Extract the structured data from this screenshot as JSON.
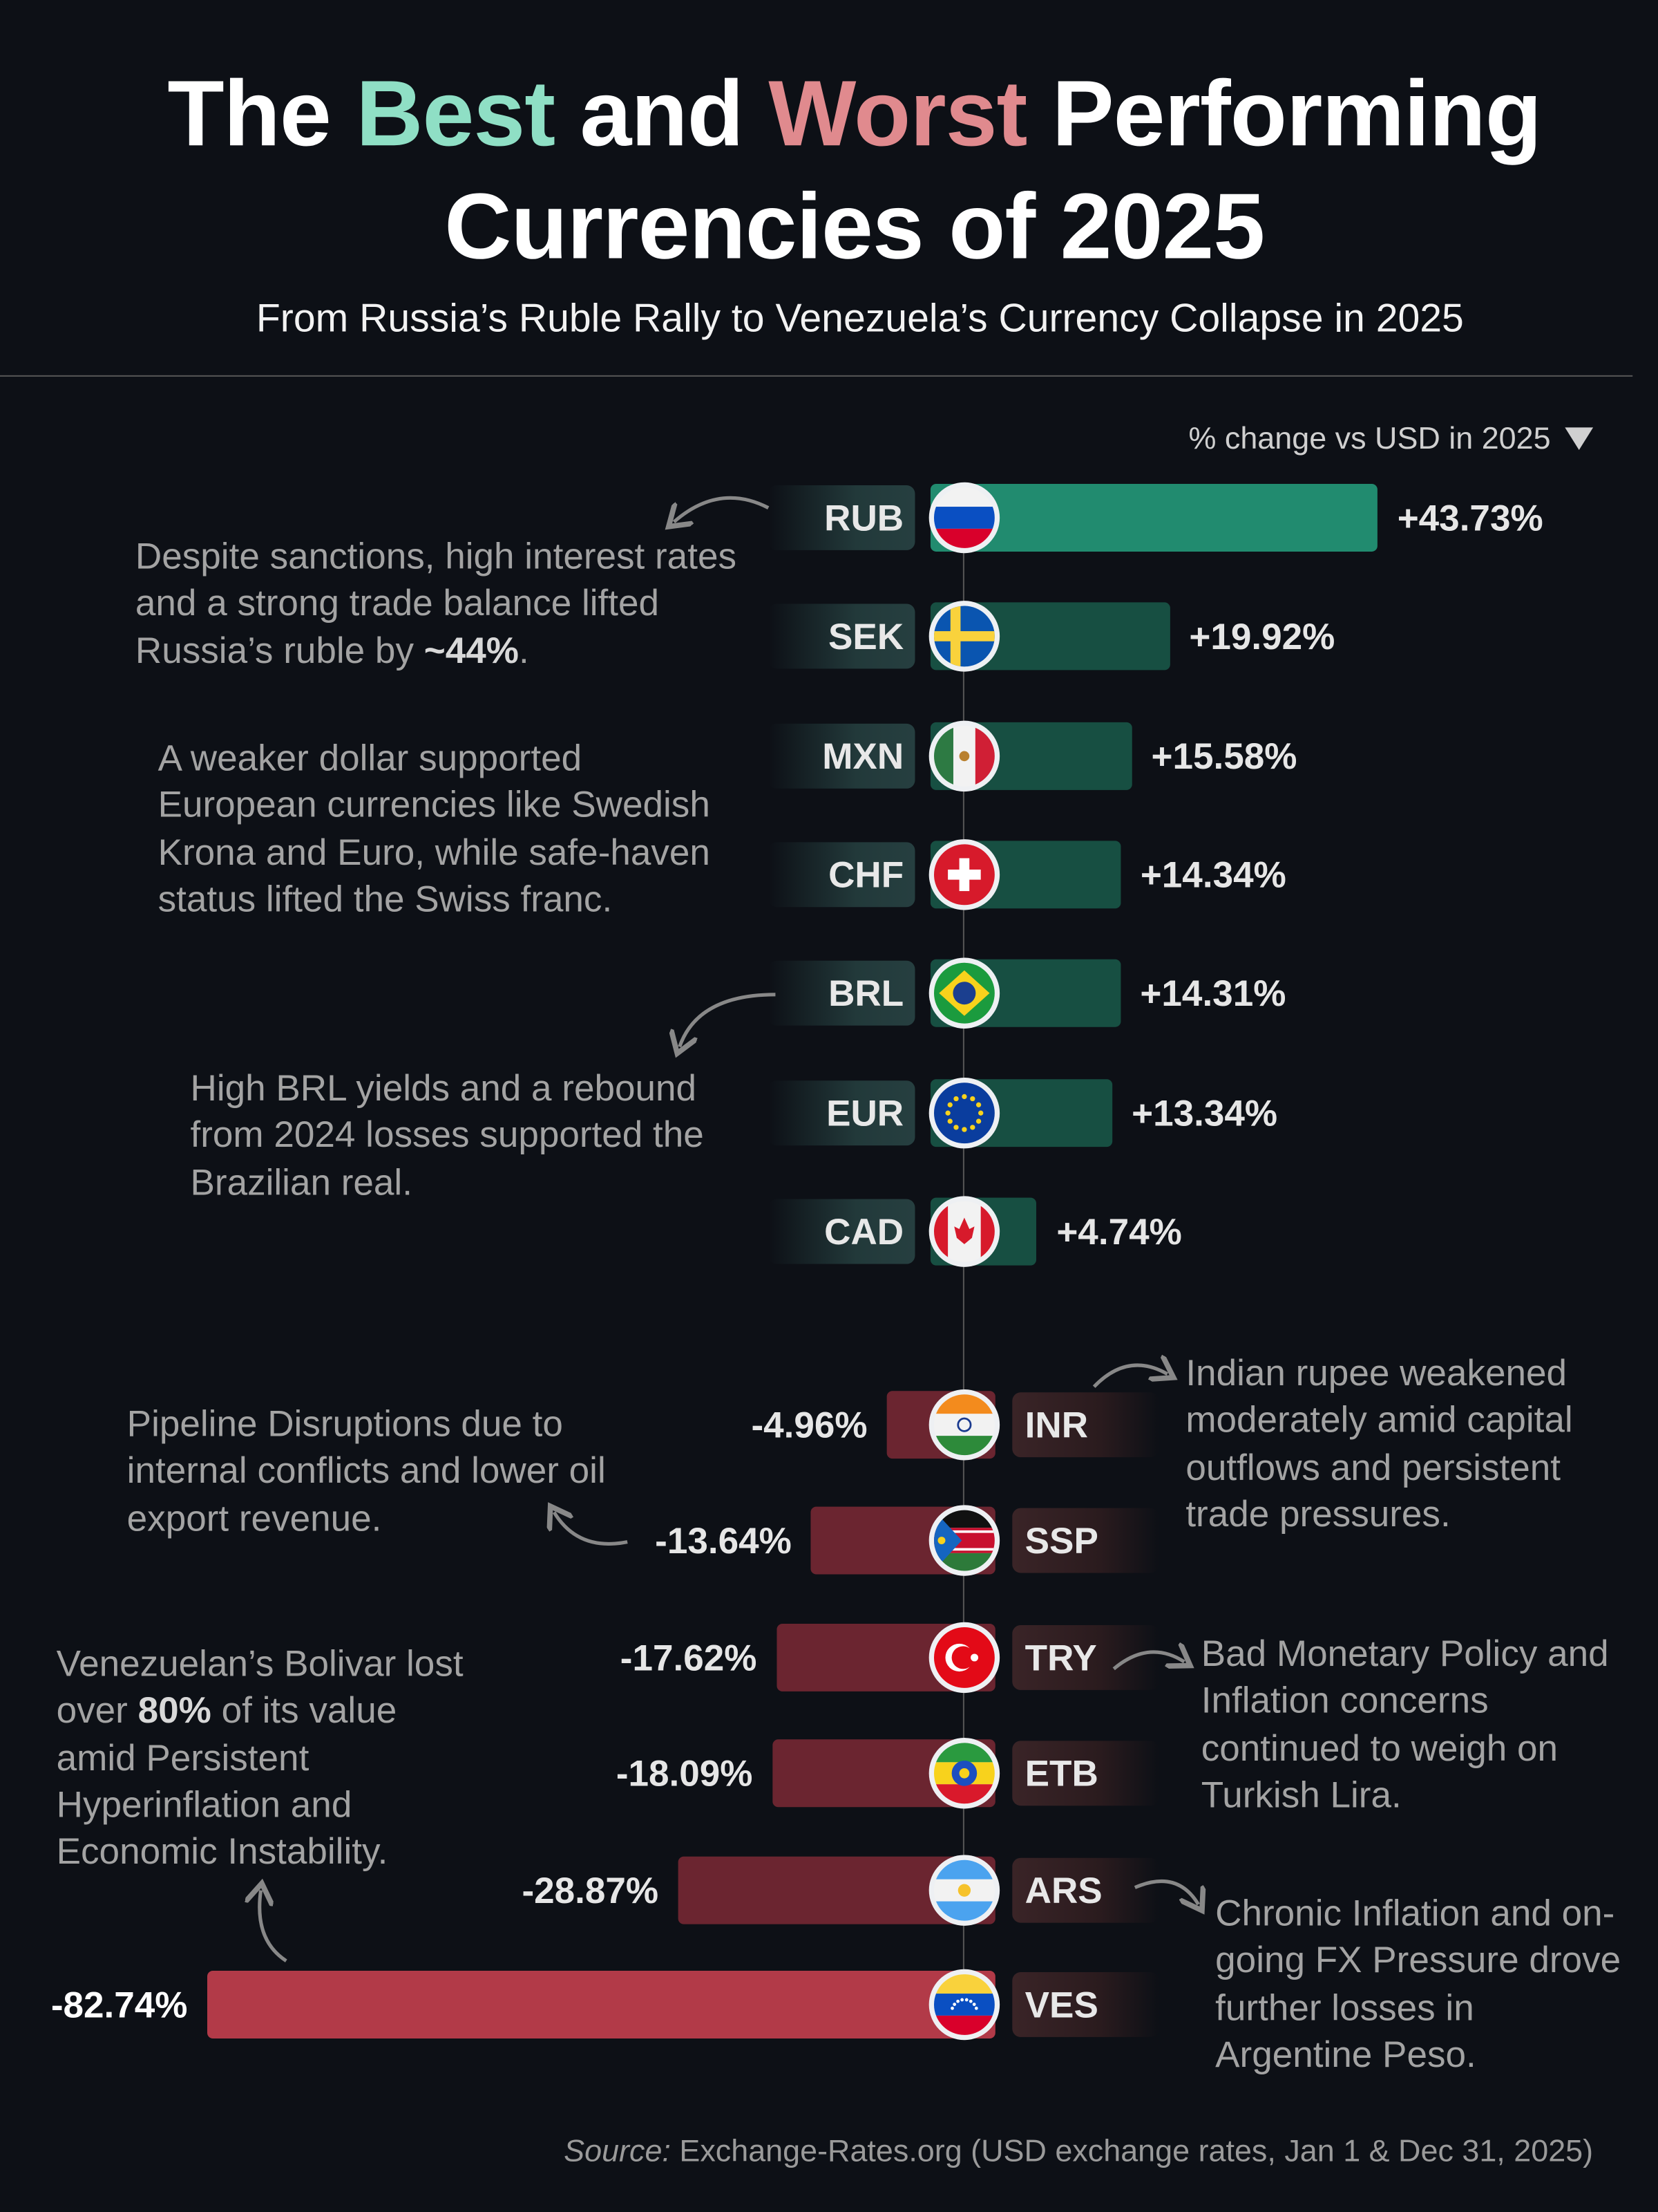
{
  "header": {
    "title_part1": "The ",
    "title_best": "Best",
    "title_part2": " and ",
    "title_worst": "Worst",
    "title_part3": " Performing",
    "title_line2": "Currencies of 2025",
    "subtitle": "From Russia’s Ruble Rally to Venezuela’s Currency Collapse in 2025"
  },
  "legend": {
    "label": "% change vs USD in 2025",
    "icon": "triangle-down-icon"
  },
  "colors": {
    "background": "#0d1016",
    "best": "#8fdfc5",
    "worst": "#e08a8e",
    "top_gainer_bar": "#218b6f",
    "gainer_bar": "#174f42",
    "top_loser_bar": "#b23a48",
    "loser_bar": "#6b2530"
  },
  "chart_data": {
    "type": "bar",
    "orientation": "horizontal",
    "ylabel": "% change vs USD in 2025",
    "categories": [
      "RUB",
      "SEK",
      "MXN",
      "CHF",
      "BRL",
      "EUR",
      "CAD",
      "INR",
      "SSP",
      "TRY",
      "ETB",
      "ARS",
      "VES"
    ],
    "values": [
      43.73,
      19.92,
      15.58,
      14.34,
      14.31,
      13.34,
      4.74,
      -4.96,
      -13.64,
      -17.62,
      -18.09,
      -28.87,
      -82.74
    ],
    "data_labels": [
      "+43.73%",
      "+19.92%",
      "+15.58%",
      "+14.34%",
      "+14.31%",
      "+13.34%",
      "+4.74%",
      "-4.96%",
      "-13.64%",
      "-17.62%",
      "-18.09%",
      "-28.87%",
      "-82.74%"
    ],
    "flags": [
      "flag-russia",
      "flag-sweden",
      "flag-mexico",
      "flag-switzerland",
      "flag-brazil",
      "flag-eu",
      "flag-canada",
      "flag-india",
      "flag-south-sudan",
      "flag-turkey",
      "flag-ethiopia",
      "flag-argentina",
      "flag-venezuela"
    ]
  },
  "annotations": [
    {
      "pre": "Despite sanctions, high interest rates and a strong trade balance lifted Russia’s ruble by ",
      "bold": "~44%",
      "post": "."
    },
    {
      "pre": "A weaker dollar supported European currencies like Swedish Krona and Euro, while safe-haven status lifted the Swiss franc.",
      "bold": "",
      "post": ""
    },
    {
      "pre": "High BRL yields and a rebound from 2024 losses supported the Brazilian real.",
      "bold": "",
      "post": ""
    },
    {
      "pre": "Pipeline Disruptions due to internal conflicts and lower oil export revenue.",
      "bold": "",
      "post": ""
    },
    {
      "pre": "Indian rupee weakened moderately amid capital outflows and persistent trade pressures.",
      "bold": "",
      "post": ""
    },
    {
      "pre": "Venezuelan’s Bolivar lost over ",
      "bold": "80%",
      "post": " of its value amid Persistent Hyperinflation and Economic Instability."
    },
    {
      "pre": "Bad Monetary Policy and Inflation concerns continued to weigh on Turkish Lira.",
      "bold": "",
      "post": ""
    },
    {
      "pre": "Chronic Inflation and on-going FX Pressure drove further losses in Argentine Peso.",
      "bold": "",
      "post": ""
    }
  ],
  "source": {
    "label": "Source:",
    "text": " Exchange-Rates.org (USD exchange rates, Jan 1 & Dec 31, 2025)"
  }
}
